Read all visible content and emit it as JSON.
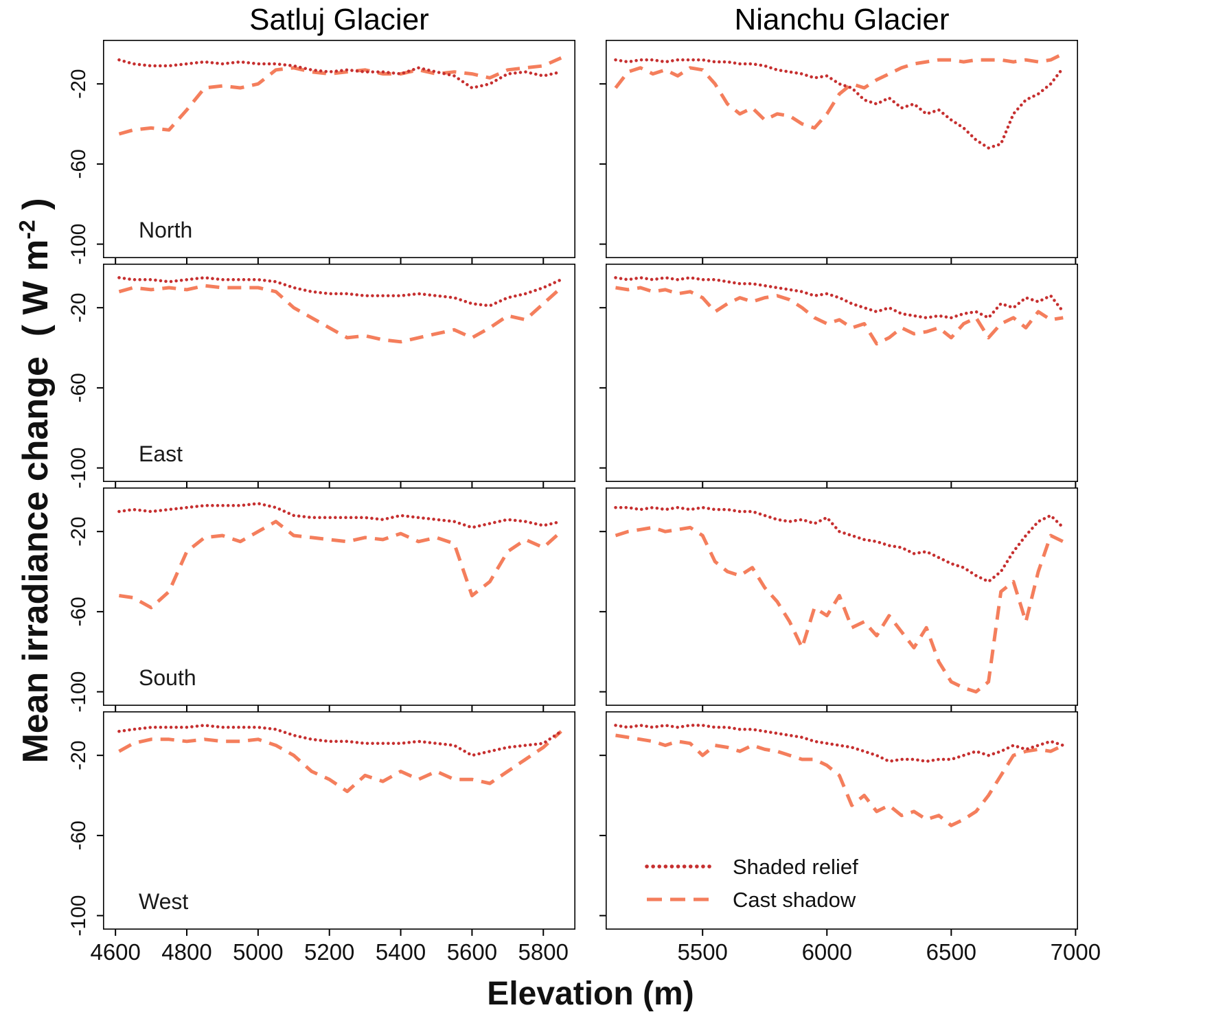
{
  "chart_data": {
    "type": "line",
    "columns": [
      "Satluj Glacier",
      "Nianchu Glacier"
    ],
    "rows": [
      "North",
      "East",
      "South",
      "West"
    ],
    "ylabel": "Mean irradiance change",
    "ylabel_unit_open": "( W m",
    "ylabel_sup": "-2",
    "ylabel_unit_close": " )",
    "xlabel": "Elevation (m)",
    "ylim": [
      -107,
      2
    ],
    "yticks": [
      -20,
      -60,
      -100
    ],
    "grid": false,
    "legend": {
      "position": "inside-bottom-right-panel",
      "entries": [
        "Shaded relief",
        "Cast shadow"
      ]
    },
    "series_styles": [
      {
        "name": "Shaded relief",
        "color": "#c62f2f",
        "dash": "dotted"
      },
      {
        "name": "Cast shadow",
        "color": "#f47e5c",
        "dash": "dashed"
      }
    ],
    "panels": [
      {
        "key": "satluj-north",
        "col": "Satluj Glacier",
        "row": "North",
        "show_row_label": true,
        "show_y_tick_labels": true,
        "show_x_tick_labels": false,
        "legend": false,
        "xlim": [
          4565,
          5890
        ],
        "xticks": [
          4600,
          4800,
          5000,
          5200,
          5400,
          5600,
          5800
        ],
        "x": [
          4610,
          4650,
          4700,
          4750,
          4800,
          4850,
          4900,
          4950,
          5000,
          5050,
          5100,
          5150,
          5200,
          5250,
          5300,
          5350,
          5400,
          5450,
          5500,
          5550,
          5600,
          5650,
          5700,
          5750,
          5800,
          5850
        ],
        "series": [
          {
            "name": "Shaded relief",
            "y": [
              -8,
              -10,
              -11,
              -11,
              -10,
              -9,
              -10,
              -9,
              -10,
              -10,
              -11,
              -13,
              -14,
              -13,
              -14,
              -14,
              -15,
              -12,
              -14,
              -16,
              -22,
              -20,
              -15,
              -14,
              -16,
              -14
            ]
          },
          {
            "name": "Cast shadow",
            "y": [
              -45,
              -43,
              -42,
              -43,
              -33,
              -22,
              -21,
              -22,
              -20,
              -13,
              -12,
              -14,
              -15,
              -14,
              -13,
              -15,
              -15,
              -13,
              -15,
              -14,
              -15,
              -17,
              -13,
              -12,
              -11,
              -7
            ]
          }
        ]
      },
      {
        "key": "nianchu-north",
        "col": "Nianchu Glacier",
        "row": "North",
        "show_row_label": false,
        "show_y_tick_labels": false,
        "show_x_tick_labels": false,
        "legend": false,
        "xlim": [
          5110,
          7010
        ],
        "xticks": [
          5500,
          6000,
          6500,
          7000
        ],
        "x": [
          5150,
          5200,
          5250,
          5300,
          5350,
          5400,
          5450,
          5500,
          5550,
          5600,
          5650,
          5700,
          5750,
          5800,
          5850,
          5900,
          5950,
          6000,
          6050,
          6100,
          6150,
          6200,
          6250,
          6300,
          6350,
          6400,
          6450,
          6500,
          6550,
          6600,
          6650,
          6700,
          6750,
          6800,
          6850,
          6900,
          6950
        ],
        "series": [
          {
            "name": "Shaded relief",
            "y": [
              -8,
              -9,
              -8,
              -8,
              -9,
              -8,
              -8,
              -8,
              -9,
              -9,
              -10,
              -10,
              -11,
              -13,
              -14,
              -15,
              -17,
              -16,
              -20,
              -22,
              -28,
              -30,
              -27,
              -32,
              -30,
              -35,
              -33,
              -38,
              -42,
              -48,
              -52,
              -50,
              -35,
              -28,
              -25,
              -20,
              -12
            ]
          },
          {
            "name": "Cast shadow",
            "y": [
              -22,
              -14,
              -12,
              -15,
              -13,
              -16,
              -12,
              -13,
              -20,
              -30,
              -35,
              -32,
              -38,
              -35,
              -36,
              -40,
              -42,
              -35,
              -25,
              -20,
              -22,
              -18,
              -15,
              -12,
              -10,
              -9,
              -8,
              -8,
              -9,
              -8,
              -8,
              -8,
              -9,
              -8,
              -9,
              -8,
              -5
            ]
          }
        ]
      },
      {
        "key": "satluj-east",
        "col": "Satluj Glacier",
        "row": "East",
        "show_row_label": true,
        "show_y_tick_labels": true,
        "show_x_tick_labels": false,
        "legend": false,
        "xlim": [
          4565,
          5890
        ],
        "xticks": [
          4600,
          4800,
          5000,
          5200,
          5400,
          5600,
          5800
        ],
        "x": [
          4610,
          4650,
          4700,
          4750,
          4800,
          4850,
          4900,
          4950,
          5000,
          5050,
          5100,
          5150,
          5200,
          5250,
          5300,
          5350,
          5400,
          5450,
          5500,
          5550,
          5600,
          5650,
          5700,
          5750,
          5800,
          5850
        ],
        "series": [
          {
            "name": "Shaded relief",
            "y": [
              -5,
              -6,
              -6,
              -7,
              -6,
              -5,
              -6,
              -6,
              -6,
              -7,
              -10,
              -12,
              -13,
              -13,
              -14,
              -14,
              -14,
              -13,
              -14,
              -15,
              -18,
              -19,
              -15,
              -13,
              -10,
              -6
            ]
          },
          {
            "name": "Cast shadow",
            "y": [
              -12,
              -10,
              -11,
              -10,
              -11,
              -9,
              -10,
              -10,
              -10,
              -12,
              -20,
              -25,
              -30,
              -35,
              -34,
              -36,
              -37,
              -35,
              -33,
              -31,
              -35,
              -30,
              -24,
              -26,
              -18,
              -10
            ]
          }
        ]
      },
      {
        "key": "nianchu-east",
        "col": "Nianchu Glacier",
        "row": "East",
        "show_row_label": false,
        "show_y_tick_labels": false,
        "show_x_tick_labels": false,
        "legend": false,
        "xlim": [
          5110,
          7010
        ],
        "xticks": [
          5500,
          6000,
          6500,
          7000
        ],
        "x": [
          5150,
          5200,
          5250,
          5300,
          5350,
          5400,
          5450,
          5500,
          5550,
          5600,
          5650,
          5700,
          5750,
          5800,
          5850,
          5900,
          5950,
          6000,
          6050,
          6100,
          6150,
          6200,
          6250,
          6300,
          6350,
          6400,
          6450,
          6500,
          6550,
          6600,
          6650,
          6700,
          6750,
          6800,
          6850,
          6900,
          6950
        ],
        "series": [
          {
            "name": "Shaded relief",
            "y": [
              -5,
              -6,
              -5,
              -6,
              -5,
              -6,
              -5,
              -6,
              -6,
              -7,
              -8,
              -8,
              -9,
              -10,
              -11,
              -12,
              -14,
              -13,
              -15,
              -18,
              -20,
              -22,
              -20,
              -23,
              -24,
              -25,
              -24,
              -25,
              -23,
              -22,
              -25,
              -18,
              -20,
              -15,
              -17,
              -14,
              -22
            ]
          },
          {
            "name": "Cast shadow",
            "y": [
              -10,
              -11,
              -10,
              -12,
              -11,
              -13,
              -12,
              -15,
              -22,
              -18,
              -15,
              -17,
              -15,
              -14,
              -16,
              -20,
              -25,
              -28,
              -26,
              -30,
              -28,
              -38,
              -35,
              -30,
              -33,
              -32,
              -30,
              -35,
              -28,
              -25,
              -35,
              -28,
              -25,
              -30,
              -22,
              -26,
              -25
            ]
          }
        ]
      },
      {
        "key": "satluj-south",
        "col": "Satluj Glacier",
        "row": "South",
        "show_row_label": true,
        "show_y_tick_labels": true,
        "show_x_tick_labels": false,
        "legend": false,
        "xlim": [
          4565,
          5890
        ],
        "xticks": [
          4600,
          4800,
          5000,
          5200,
          5400,
          5600,
          5800
        ],
        "x": [
          4610,
          4650,
          4700,
          4750,
          4800,
          4850,
          4900,
          4950,
          5000,
          5050,
          5100,
          5150,
          5200,
          5250,
          5300,
          5350,
          5400,
          5450,
          5500,
          5550,
          5600,
          5650,
          5700,
          5750,
          5800,
          5850
        ],
        "series": [
          {
            "name": "Shaded relief",
            "y": [
              -10,
              -9,
              -10,
              -9,
              -8,
              -7,
              -7,
              -7,
              -6,
              -8,
              -12,
              -13,
              -13,
              -13,
              -13,
              -14,
              -12,
              -13,
              -14,
              -15,
              -18,
              -16,
              -14,
              -15,
              -17,
              -15
            ]
          },
          {
            "name": "Cast shadow",
            "y": [
              -52,
              -53,
              -58,
              -50,
              -30,
              -23,
              -22,
              -25,
              -20,
              -15,
              -22,
              -23,
              -24,
              -25,
              -23,
              -24,
              -21,
              -25,
              -23,
              -26,
              -52,
              -45,
              -30,
              -24,
              -28,
              -20
            ]
          }
        ]
      },
      {
        "key": "nianchu-south",
        "col": "Nianchu Glacier",
        "row": "South",
        "show_row_label": false,
        "show_y_tick_labels": false,
        "show_x_tick_labels": false,
        "legend": false,
        "xlim": [
          5110,
          7010
        ],
        "xticks": [
          5500,
          6000,
          6500,
          7000
        ],
        "x": [
          5150,
          5200,
          5250,
          5300,
          5350,
          5400,
          5450,
          5500,
          5550,
          5600,
          5650,
          5700,
          5750,
          5800,
          5850,
          5900,
          5950,
          6000,
          6050,
          6100,
          6150,
          6200,
          6250,
          6300,
          6350,
          6400,
          6450,
          6500,
          6550,
          6600,
          6650,
          6700,
          6750,
          6800,
          6850,
          6900,
          6950
        ],
        "series": [
          {
            "name": "Shaded relief",
            "y": [
              -8,
              -8,
              -9,
              -8,
              -9,
              -8,
              -9,
              -8,
              -9,
              -9,
              -10,
              -10,
              -12,
              -14,
              -15,
              -14,
              -16,
              -13,
              -20,
              -22,
              -24,
              -25,
              -27,
              -28,
              -31,
              -30,
              -33,
              -36,
              -38,
              -42,
              -45,
              -40,
              -30,
              -22,
              -15,
              -12,
              -18
            ]
          },
          {
            "name": "Cast shadow",
            "y": [
              -22,
              -20,
              -19,
              -18,
              -20,
              -19,
              -18,
              -22,
              -35,
              -40,
              -42,
              -38,
              -48,
              -55,
              -65,
              -78,
              -58,
              -62,
              -52,
              -68,
              -65,
              -72,
              -62,
              -70,
              -78,
              -68,
              -85,
              -95,
              -98,
              -100,
              -95,
              -50,
              -45,
              -65,
              -40,
              -22,
              -25
            ]
          }
        ]
      },
      {
        "key": "satluj-west",
        "col": "Satluj Glacier",
        "row": "West",
        "show_row_label": true,
        "show_y_tick_labels": true,
        "show_x_tick_labels": true,
        "legend": false,
        "xlim": [
          4565,
          5890
        ],
        "xticks": [
          4600,
          4800,
          5000,
          5200,
          5400,
          5600,
          5800
        ],
        "x": [
          4610,
          4650,
          4700,
          4750,
          4800,
          4850,
          4900,
          4950,
          5000,
          5050,
          5100,
          5150,
          5200,
          5250,
          5300,
          5350,
          5400,
          5450,
          5500,
          5550,
          5600,
          5650,
          5700,
          5750,
          5800,
          5850
        ],
        "series": [
          {
            "name": "Shaded relief",
            "y": [
              -8,
              -7,
              -6,
              -6,
              -6,
              -5,
              -6,
              -6,
              -6,
              -7,
              -10,
              -12,
              -13,
              -13,
              -14,
              -14,
              -14,
              -13,
              -14,
              -15,
              -20,
              -18,
              -16,
              -15,
              -14,
              -8
            ]
          },
          {
            "name": "Cast shadow",
            "y": [
              -18,
              -14,
              -12,
              -12,
              -13,
              -12,
              -13,
              -13,
              -12,
              -15,
              -20,
              -28,
              -32,
              -38,
              -30,
              -33,
              -28,
              -32,
              -28,
              -32,
              -32,
              -34,
              -28,
              -22,
              -16,
              -8
            ]
          }
        ]
      },
      {
        "key": "nianchu-west",
        "col": "Nianchu Glacier",
        "row": "West",
        "show_row_label": false,
        "show_y_tick_labels": false,
        "show_x_tick_labels": true,
        "legend": true,
        "xlim": [
          5110,
          7010
        ],
        "xticks": [
          5500,
          6000,
          6500,
          7000
        ],
        "x": [
          5150,
          5200,
          5250,
          5300,
          5350,
          5400,
          5450,
          5500,
          5550,
          5600,
          5650,
          5700,
          5750,
          5800,
          5850,
          5900,
          5950,
          6000,
          6050,
          6100,
          6150,
          6200,
          6250,
          6300,
          6350,
          6400,
          6450,
          6500,
          6550,
          6600,
          6650,
          6700,
          6750,
          6800,
          6850,
          6900,
          6950
        ],
        "series": [
          {
            "name": "Shaded relief",
            "y": [
              -5,
              -6,
              -5,
              -6,
              -5,
              -6,
              -5,
              -5,
              -6,
              -6,
              -7,
              -7,
              -8,
              -9,
              -10,
              -11,
              -13,
              -14,
              -15,
              -16,
              -18,
              -20,
              -23,
              -22,
              -22,
              -23,
              -22,
              -22,
              -20,
              -18,
              -20,
              -18,
              -15,
              -17,
              -15,
              -13,
              -15
            ]
          },
          {
            "name": "Cast shadow",
            "y": [
              -10,
              -11,
              -12,
              -13,
              -15,
              -13,
              -14,
              -20,
              -15,
              -16,
              -18,
              -15,
              -17,
              -18,
              -20,
              -22,
              -22,
              -25,
              -30,
              -45,
              -40,
              -48,
              -45,
              -50,
              -48,
              -52,
              -50,
              -55,
              -52,
              -48,
              -40,
              -30,
              -20,
              -18,
              -17,
              -18,
              -15
            ]
          }
        ]
      }
    ]
  }
}
